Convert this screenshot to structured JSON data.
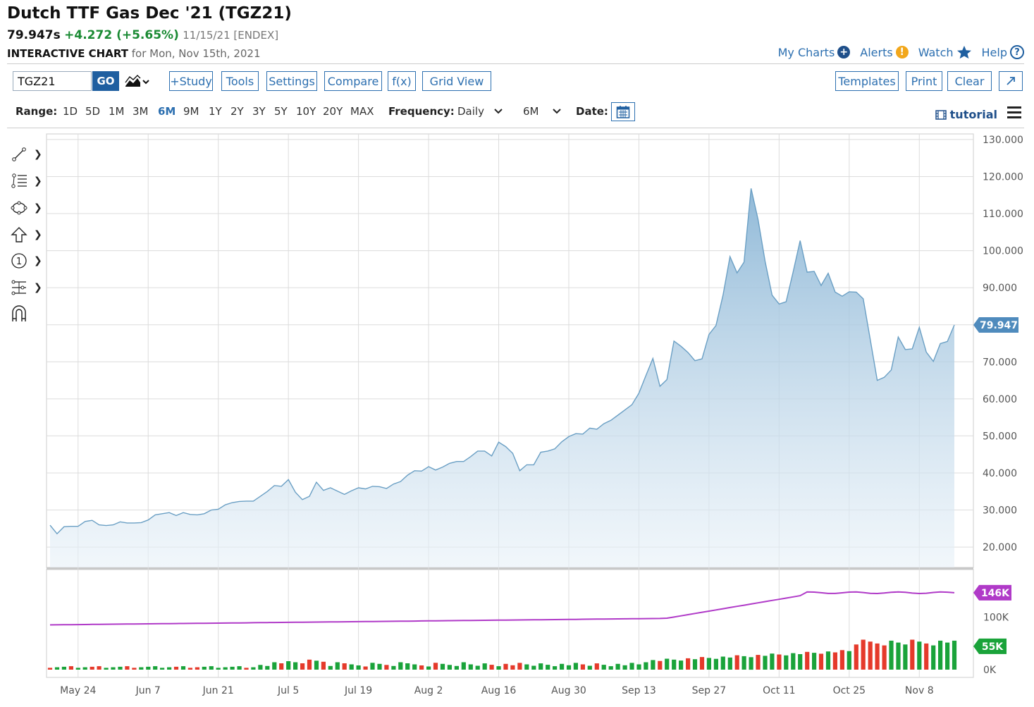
{
  "header": {
    "title": "Dutch TTF Gas Dec '21 (TGZ21)",
    "price": "79.947s",
    "change": "+4.272 (+5.65%)",
    "date_exchange": "11/15/21 [ENDEX]",
    "chart_label": "INTERACTIVE CHART",
    "chart_for": "for Mon, Nov 15th, 2021"
  },
  "top_links": {
    "my_charts": "My Charts",
    "alerts": "Alerts",
    "watch": "Watch",
    "help": "Help"
  },
  "toolbar": {
    "symbol_value": "TGZ21",
    "go": "GO",
    "study": "+Study",
    "tools": "Tools",
    "settings": "Settings",
    "compare": "Compare",
    "fx": "f(x)",
    "grid_view": "Grid View",
    "templates": "Templates",
    "print": "Print",
    "clear": "Clear"
  },
  "range_bar": {
    "range_label": "Range:",
    "ranges": [
      "1D",
      "5D",
      "1M",
      "3M",
      "6M",
      "9M",
      "1Y",
      "2Y",
      "3Y",
      "5Y",
      "10Y",
      "20Y",
      "MAX"
    ],
    "active_range": "6M",
    "frequency_label": "Frequency:",
    "frequency_value": "Daily",
    "period_value": "6M",
    "date_label": "Date:",
    "tutorial": "tutorial"
  },
  "colors": {
    "accent": "#2c6fb0",
    "area_line": "#6a9fc4",
    "volume_up": "#1aa33a",
    "volume_down": "#e53a2b",
    "open_interest": "#b03ac8"
  },
  "chart_data": {
    "type": "area",
    "title": "",
    "x": [
      "May 18",
      "May 19",
      "May 20",
      "May 21",
      "May 24",
      "May 25",
      "May 26",
      "May 27",
      "May 28",
      "May 31",
      "Jun 1",
      "Jun 2",
      "Jun 3",
      "Jun 4",
      "Jun 7",
      "Jun 8",
      "Jun 9",
      "Jun 10",
      "Jun 11",
      "Jun 14",
      "Jun 15",
      "Jun 16",
      "Jun 17",
      "Jun 18",
      "Jun 21",
      "Jun 22",
      "Jun 23",
      "Jun 24",
      "Jun 25",
      "Jun 28",
      "Jun 29",
      "Jun 30",
      "Jul 1",
      "Jul 2",
      "Jul 5",
      "Jul 6",
      "Jul 7",
      "Jul 8",
      "Jul 9",
      "Jul 12",
      "Jul 13",
      "Jul 14",
      "Jul 15",
      "Jul 16",
      "Jul 19",
      "Jul 20",
      "Jul 21",
      "Jul 22",
      "Jul 23",
      "Jul 26",
      "Jul 27",
      "Jul 28",
      "Jul 29",
      "Jul 30",
      "Aug 2",
      "Aug 3",
      "Aug 4",
      "Aug 5",
      "Aug 6",
      "Aug 9",
      "Aug 10",
      "Aug 11",
      "Aug 12",
      "Aug 13",
      "Aug 16",
      "Aug 17",
      "Aug 18",
      "Aug 19",
      "Aug 20",
      "Aug 23",
      "Aug 24",
      "Aug 25",
      "Aug 26",
      "Aug 27",
      "Aug 30",
      "Aug 31",
      "Sep 1",
      "Sep 2",
      "Sep 3",
      "Sep 6",
      "Sep 7",
      "Sep 8",
      "Sep 9",
      "Sep 10",
      "Sep 13",
      "Sep 14",
      "Sep 15",
      "Sep 16",
      "Sep 17",
      "Sep 20",
      "Sep 21",
      "Sep 22",
      "Sep 23",
      "Sep 24",
      "Sep 27",
      "Sep 28",
      "Sep 29",
      "Sep 30",
      "Oct 1",
      "Oct 4",
      "Oct 5",
      "Oct 6",
      "Oct 7",
      "Oct 8",
      "Oct 11",
      "Oct 12",
      "Oct 13",
      "Oct 14",
      "Oct 15",
      "Oct 18",
      "Oct 19",
      "Oct 20",
      "Oct 21",
      "Oct 22",
      "Oct 25",
      "Oct 26",
      "Oct 27",
      "Oct 28",
      "Oct 29",
      "Nov 1",
      "Nov 2",
      "Nov 3",
      "Nov 4",
      "Nov 5",
      "Nov 8",
      "Nov 9",
      "Nov 10",
      "Nov 11",
      "Nov 12",
      "Nov 15"
    ],
    "x_ticks": [
      "May 24",
      "Jun 7",
      "Jun 21",
      "Jul 5",
      "Jul 19",
      "Aug 2",
      "Aug 16",
      "Aug 30",
      "Sep 13",
      "Sep 27",
      "Oct 11",
      "Oct 25",
      "Nov 8"
    ],
    "y_ticks": [
      "130.000",
      "120.000",
      "110.000",
      "100.000",
      "90.000",
      "70.000",
      "60.000",
      "50.000",
      "40.000",
      "30.000",
      "20.000"
    ],
    "ylim": [
      14.5,
      131.5
    ],
    "last_price_label": "79.947",
    "last_price": 79.947,
    "price": [
      25.9,
      23.6,
      25.5,
      25.6,
      25.6,
      26.9,
      27.2,
      26.0,
      25.8,
      26.0,
      26.8,
      26.5,
      26.5,
      26.6,
      27.3,
      28.7,
      29.0,
      29.3,
      28.5,
      29.3,
      28.8,
      28.7,
      29.0,
      30.0,
      30.2,
      31.4,
      32.0,
      32.3,
      32.4,
      32.4,
      33.7,
      35.0,
      36.6,
      36.4,
      38.2,
      34.8,
      32.8,
      33.7,
      37.5,
      35.3,
      36.0,
      35.1,
      34.2,
      35.2,
      36.0,
      35.7,
      36.4,
      36.3,
      35.8,
      37.0,
      37.7,
      39.4,
      40.6,
      40.5,
      41.7,
      40.8,
      41.6,
      42.6,
      43.1,
      43.1,
      44.4,
      45.9,
      45.9,
      44.6,
      48.3,
      47.1,
      45.3,
      40.6,
      42.2,
      42.2,
      45.6,
      45.9,
      46.5,
      48.4,
      49.8,
      50.6,
      50.5,
      52.1,
      51.8,
      53.3,
      54.2,
      55.6,
      57.0,
      58.4,
      61.5,
      66.3,
      70.9,
      63.4,
      65.2,
      75.6,
      74.2,
      72.5,
      70.3,
      70.8,
      77.4,
      79.8,
      88.0,
      98.4,
      94.0,
      96.9,
      116.8,
      108.4,
      97.1,
      88.0,
      85.6,
      86.2,
      94.2,
      102.7,
      94.2,
      94.4,
      90.6,
      93.9,
      88.8,
      87.7,
      88.9,
      88.8,
      87.0,
      76.0,
      65.0,
      65.8,
      67.8,
      76.7,
      73.3,
      73.5,
      79.3,
      72.6,
      70.1,
      74.9,
      75.5,
      79.947
    ],
    "open_interest": {
      "last_label": "146K",
      "y_ticks": [
        "100K",
        "0K"
      ],
      "ylim": [
        0,
        190000
      ]
    },
    "volume": {
      "last_label": "55K",
      "ylim": [
        0,
        190000
      ]
    }
  }
}
